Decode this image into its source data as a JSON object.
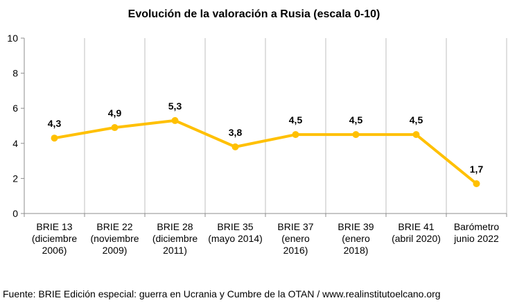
{
  "chart_data": {
    "type": "line",
    "title": "Evolución de la valoración a Rusia (escala 0-10)",
    "categories": [
      [
        "BRIE 13",
        "(diciembre",
        "2006)"
      ],
      [
        "BRIE 22",
        "(noviembre",
        "2009)"
      ],
      [
        "BRIE 28",
        "(diciembre",
        "2011)"
      ],
      [
        "BRIE 35",
        "(mayo 2014)"
      ],
      [
        "BRIE 37",
        "(enero",
        "2016)"
      ],
      [
        "BRIE 39",
        "(enero",
        "2018)"
      ],
      [
        "BRIE 41",
        "(abril 2020)"
      ],
      [
        "Barómetro",
        "junio 2022"
      ]
    ],
    "values": [
      4.3,
      4.9,
      5.3,
      3.8,
      4.5,
      4.5,
      4.5,
      1.7
    ],
    "value_labels": [
      "4,3",
      "4,9",
      "5,3",
      "3,8",
      "4,5",
      "4,5",
      "4,5",
      "1,7"
    ],
    "ylim": [
      0,
      10
    ],
    "yticks": [
      0,
      2,
      4,
      6,
      8,
      10
    ],
    "xlabel": "",
    "ylabel": "",
    "grid": "vertical",
    "line_color": "#FFC000",
    "grid_color": "#bfbfbf"
  },
  "source": "Fuente: BRIE Edición especial: guerra en Ucrania y Cumbre de la OTAN / www.realinstitutoelcano.org"
}
